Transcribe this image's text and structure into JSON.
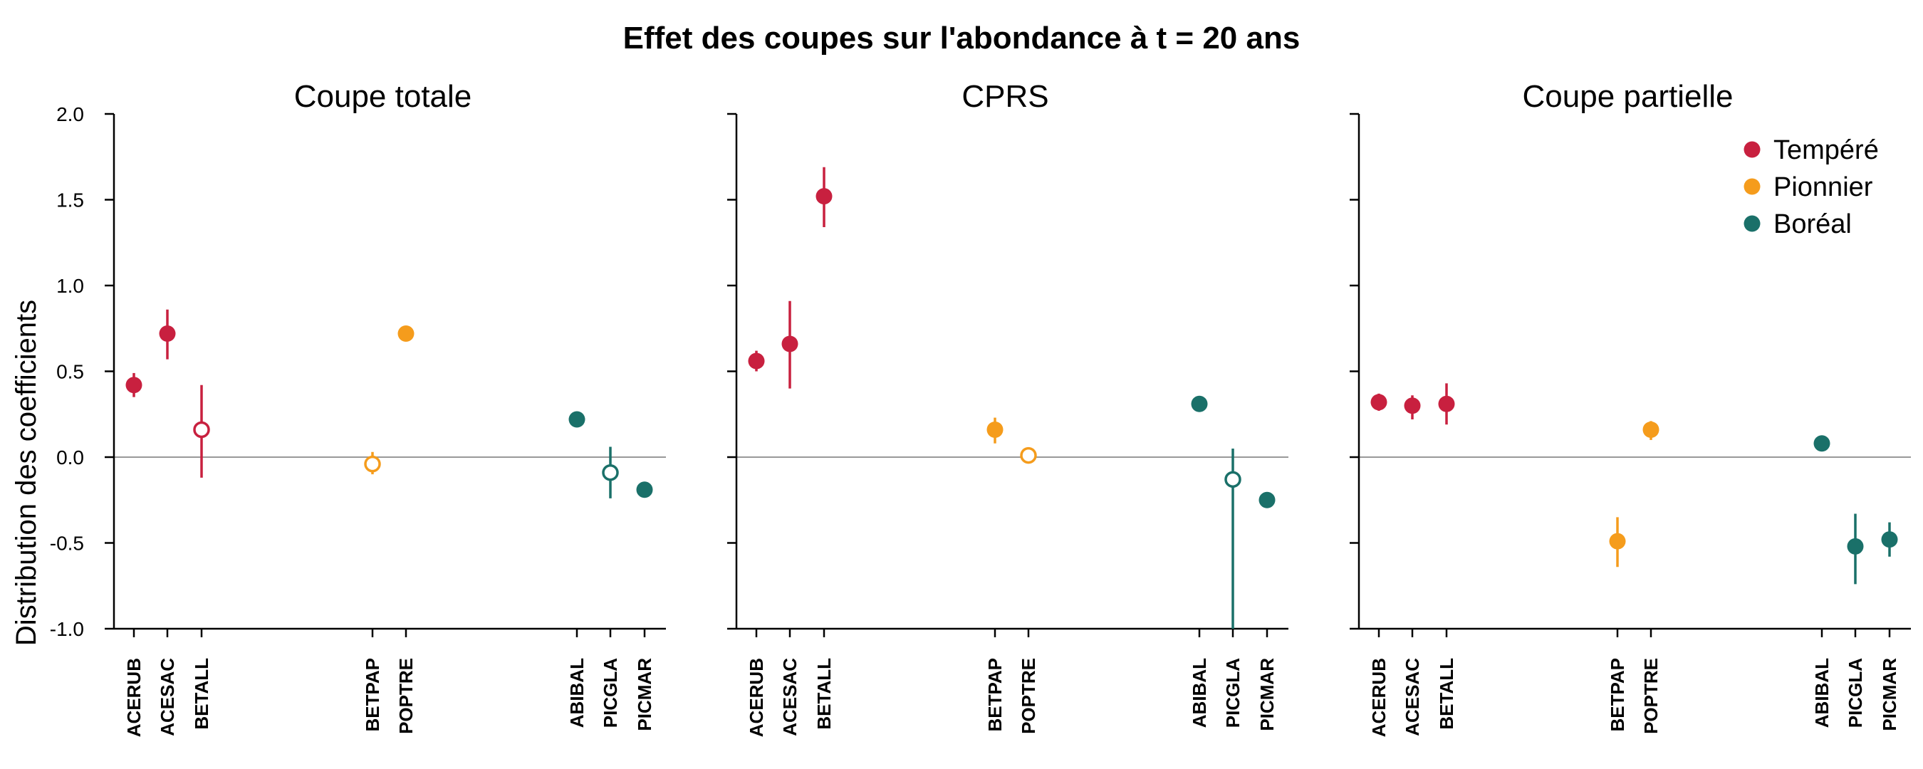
{
  "title": "Effet des coupes sur l'abondance à t = 20 ans",
  "ylabel": "Distribution des coefficients",
  "colors": {
    "Tempéré": "#c8203f",
    "Pionnier": "#f59c1c",
    "Boréal": "#1a7069",
    "zeroline": "#999999",
    "axis": "#000000"
  },
  "legend": {
    "placement": "top-right",
    "entries": [
      "Tempéré",
      "Pionnier",
      "Boréal"
    ]
  },
  "chart_data": {
    "type": "scatter",
    "style": "point-range (point estimate with interval); open marker = interval includes 0",
    "ylim": [
      -1.0,
      2.0
    ],
    "yticks": [
      "-1.0",
      "-0.5",
      "0.0",
      "0.5",
      "1.0",
      "1.5",
      "2.0"
    ],
    "ytick_values": [
      -1.0,
      -0.5,
      0.0,
      0.5,
      1.0,
      1.5,
      2.0
    ],
    "reference_line": 0,
    "grid": false,
    "categories": [
      "ACERUB",
      "ACESAC",
      "BETALL",
      "BETPAP",
      "POPTRE",
      "ABIBAL",
      "PICGLA",
      "PICMAR"
    ],
    "groups": [
      "Tempéré",
      "Tempéré",
      "Tempéré",
      "Pionnier",
      "Pionnier",
      "Boréal",
      "Boréal",
      "Boréal"
    ],
    "panels": [
      {
        "title": "Coupe totale",
        "points": [
          {
            "species": "ACERUB",
            "y": 0.42,
            "low": 0.35,
            "high": 0.49,
            "open": false
          },
          {
            "species": "ACESAC",
            "y": 0.72,
            "low": 0.57,
            "high": 0.86,
            "open": false
          },
          {
            "species": "BETALL",
            "y": 0.16,
            "low": -0.12,
            "high": 0.42,
            "open": true
          },
          {
            "species": "BETPAP",
            "y": -0.04,
            "low": -0.1,
            "high": 0.03,
            "open": true
          },
          {
            "species": "POPTRE",
            "y": 0.72,
            "low": 0.69,
            "high": 0.75,
            "open": false
          },
          {
            "species": "ABIBAL",
            "y": 0.22,
            "low": 0.2,
            "high": 0.25,
            "open": false
          },
          {
            "species": "PICGLA",
            "y": -0.09,
            "low": -0.24,
            "high": 0.06,
            "open": true
          },
          {
            "species": "PICMAR",
            "y": -0.19,
            "low": -0.21,
            "high": -0.16,
            "open": false
          }
        ]
      },
      {
        "title": "CPRS",
        "points": [
          {
            "species": "ACERUB",
            "y": 0.56,
            "low": 0.5,
            "high": 0.62,
            "open": false
          },
          {
            "species": "ACESAC",
            "y": 0.66,
            "low": 0.4,
            "high": 0.91,
            "open": false
          },
          {
            "species": "BETALL",
            "y": 1.52,
            "low": 1.34,
            "high": 1.69,
            "open": false
          },
          {
            "species": "BETPAP",
            "y": 0.16,
            "low": 0.08,
            "high": 0.23,
            "open": false
          },
          {
            "species": "POPTRE",
            "y": 0.01,
            "low": -0.02,
            "high": 0.04,
            "open": true
          },
          {
            "species": "ABIBAL",
            "y": 0.31,
            "low": 0.28,
            "high": 0.33,
            "open": false
          },
          {
            "species": "PICGLA",
            "y": -0.13,
            "low": -1.0,
            "high": 0.05,
            "open": true
          },
          {
            "species": "PICMAR",
            "y": -0.25,
            "low": -0.28,
            "high": -0.22,
            "open": false
          }
        ]
      },
      {
        "title": "Coupe partielle",
        "points": [
          {
            "species": "ACERUB",
            "y": 0.32,
            "low": 0.27,
            "high": 0.37,
            "open": false
          },
          {
            "species": "ACESAC",
            "y": 0.3,
            "low": 0.22,
            "high": 0.36,
            "open": false
          },
          {
            "species": "BETALL",
            "y": 0.31,
            "low": 0.19,
            "high": 0.43,
            "open": false
          },
          {
            "species": "BETPAP",
            "y": -0.49,
            "low": -0.64,
            "high": -0.35,
            "open": false
          },
          {
            "species": "POPTRE",
            "y": 0.16,
            "low": 0.1,
            "high": 0.21,
            "open": false
          },
          {
            "species": "ABIBAL",
            "y": 0.08,
            "low": 0.06,
            "high": 0.11,
            "open": false
          },
          {
            "species": "PICGLA",
            "y": -0.52,
            "low": -0.74,
            "high": -0.33,
            "open": false
          },
          {
            "species": "PICMAR",
            "y": -0.48,
            "low": -0.58,
            "high": -0.38,
            "open": false
          }
        ]
      }
    ]
  }
}
